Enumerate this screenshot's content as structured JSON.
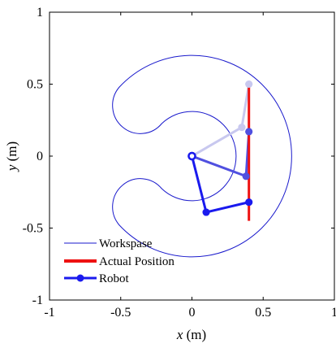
{
  "chart_data": {
    "type": "line",
    "title": "",
    "xlabel": {
      "var": "x",
      "unit": " (m)"
    },
    "ylabel": {
      "var": "y",
      "unit": " (m)"
    },
    "xlim": [
      -1,
      1
    ],
    "ylim": [
      -1,
      1
    ],
    "xticks": [
      -1,
      -0.5,
      0,
      0.5,
      1
    ],
    "yticks": [
      -1,
      -0.5,
      0,
      0.5,
      1
    ],
    "xtick_labels": [
      "-1",
      "-0.5",
      "0",
      "0.5",
      "1"
    ],
    "ytick_labels": [
      "-1",
      "-0.5",
      "0",
      "0.5",
      "1"
    ],
    "grid": false,
    "legend": {
      "position": "bottom-left",
      "entries": [
        {
          "label": "Workspase",
          "color": "#1a1acc",
          "style": "thin-line"
        },
        {
          "label": "Actual Position",
          "color": "#ee1111",
          "style": "thick-line"
        },
        {
          "label": "Robot",
          "color": "#1a1aee",
          "style": "line-marker"
        }
      ]
    },
    "workspace": {
      "name": "Workspase",
      "color": "#1a1acc",
      "outer_radius": 0.7,
      "inner_radius": 0.31,
      "inner_center": [
        0,
        0
      ],
      "cap_radius": 0.195,
      "cap_centers": [
        [
          -0.245,
          0.225
        ],
        [
          -0.245,
          -0.225
        ]
      ],
      "outer_arc_deg": [
        -137,
        137
      ],
      "inner_arc_deg": [
        -133,
        133
      ]
    },
    "actual_position": {
      "name": "Actual Position",
      "color": "#ee1111",
      "x": [
        0.4,
        0.4
      ],
      "y": [
        -0.45,
        0.5
      ]
    },
    "robot_configurations": [
      {
        "joints": [
          [
            0,
            0
          ],
          [
            0.1,
            -0.39
          ],
          [
            0.4,
            -0.32
          ]
        ],
        "color": "#1a1aee",
        "opacity": 1.0
      },
      {
        "joints": [
          [
            0,
            0
          ],
          [
            0.38,
            -0.14
          ],
          [
            0.4,
            0.17
          ]
        ],
        "color": "#5050e0",
        "opacity": 1.0
      },
      {
        "joints": [
          [
            0,
            0
          ],
          [
            0.35,
            0.2
          ],
          [
            0.4,
            0.5
          ]
        ],
        "color": "#c8c8ef",
        "opacity": 1.0
      }
    ]
  }
}
